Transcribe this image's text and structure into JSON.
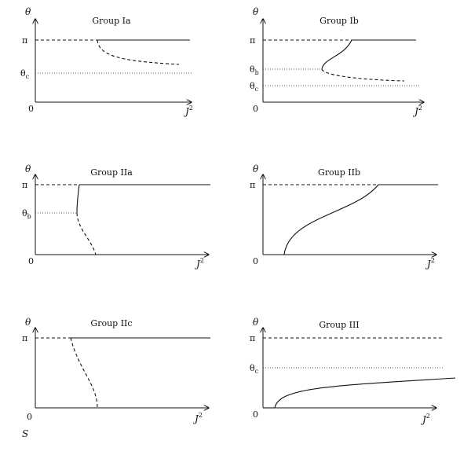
{
  "labels": {
    "theta": "θ",
    "pi": "π",
    "zero": "0",
    "theta_c": "θ",
    "theta_b": "θ",
    "sub_c": "c",
    "sub_b": "b",
    "j": "J",
    "sup2": "2",
    "s": "S"
  },
  "panels": {
    "ia": {
      "title": "Group Ia"
    },
    "ib": {
      "title": "Group Ib"
    },
    "iia": {
      "title": "Group IIa"
    },
    "iib": {
      "title": "Group IIb"
    },
    "iic": {
      "title": "Group IIc"
    },
    "iii": {
      "title": "Group III"
    }
  }
}
